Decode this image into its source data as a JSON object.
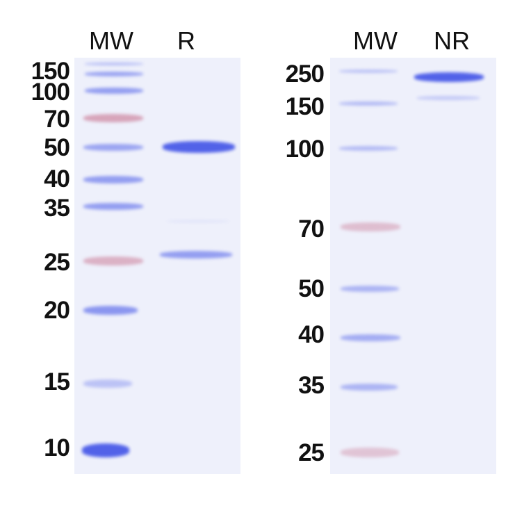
{
  "panels": [
    {
      "lane_headers": [
        "MW",
        "R"
      ],
      "marker_labels_kda": [
        "150",
        "100",
        "70",
        "50",
        "40",
        "35",
        "25",
        "20",
        "15",
        "10"
      ]
    },
    {
      "lane_headers": [
        "MW",
        "NR"
      ],
      "marker_labels_kda": [
        "250",
        "150",
        "100",
        "70",
        "50",
        "40",
        "35",
        "25"
      ]
    }
  ],
  "colors": {
    "gel": "#eef0fb",
    "blue_band": "#4a5be8",
    "pink_band": "#c8738f"
  }
}
